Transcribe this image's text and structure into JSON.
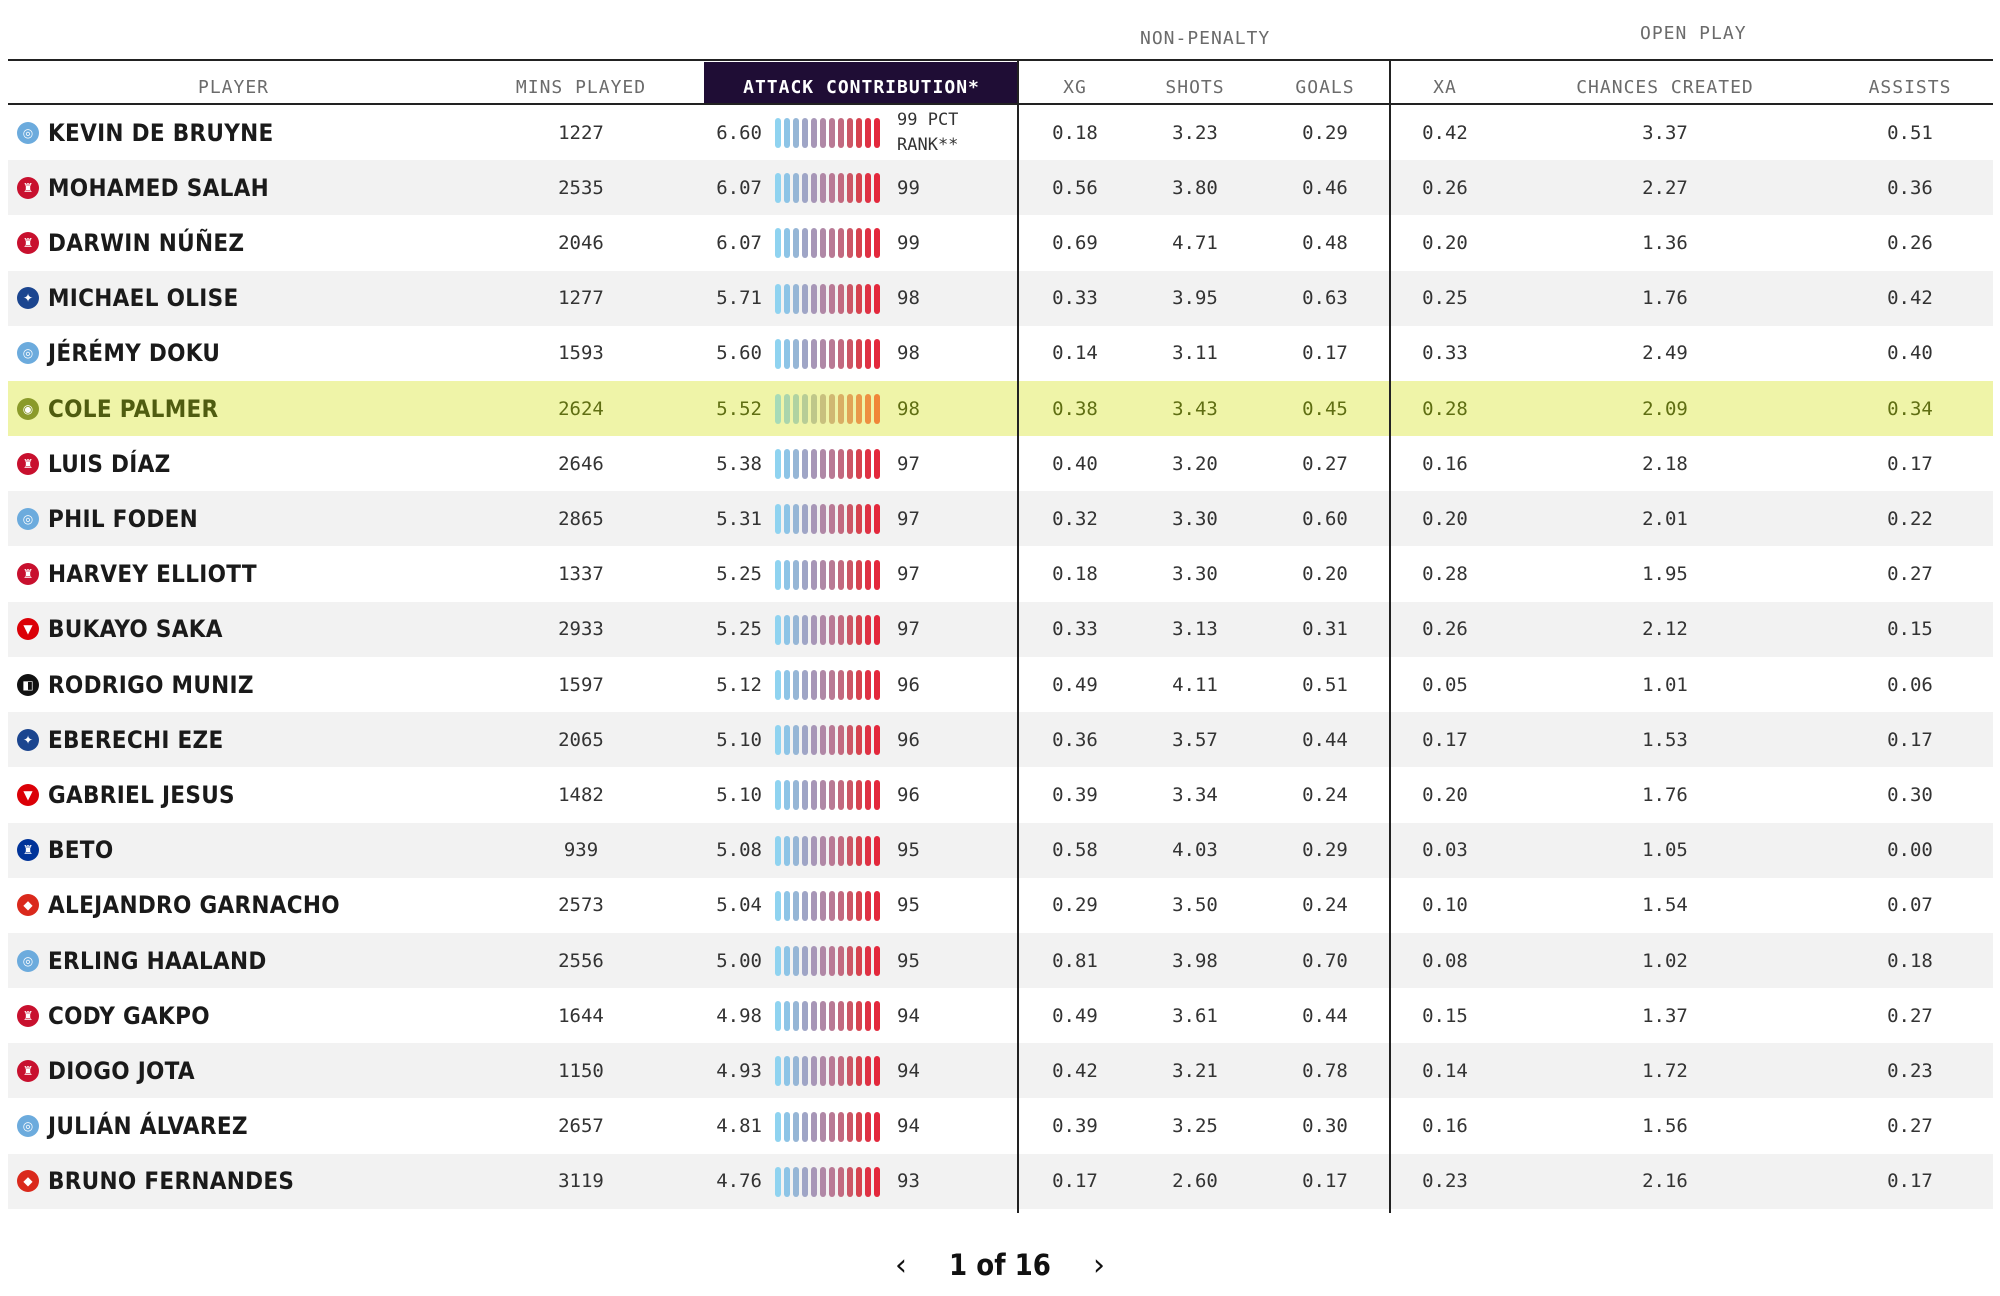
{
  "group_headers": {
    "non_penalty": "NON-PENALTY",
    "open_play": "OPEN PLAY"
  },
  "columns": {
    "player": "PLAYER",
    "mins_played": "MINS PLAYED",
    "attack_contribution": "ATTACK CONTRIBUTION*",
    "xg": "XG",
    "shots": "SHOTS",
    "goals": "GOALS",
    "xa": "XA",
    "chances_created": "CHANCES CREATED",
    "assists": "ASSISTS"
  },
  "rank_note": "99 PCT RANK**",
  "highlight_color": "#eff4a8",
  "header_active_color": "#1f0d35",
  "rows": [
    {
      "name": "KEVIN DE BRUYNE",
      "team_icon": "man-city-crest",
      "mins": "1227",
      "ac": "6.60",
      "rank": "99",
      "xg": "0.18",
      "shots": "3.23",
      "goals": "0.29",
      "xa": "0.42",
      "chances": "3.37",
      "assists": "0.51"
    },
    {
      "name": "MOHAMED SALAH",
      "team_icon": "liverpool-crest",
      "mins": "2535",
      "ac": "6.07",
      "rank": "99",
      "xg": "0.56",
      "shots": "3.80",
      "goals": "0.46",
      "xa": "0.26",
      "chances": "2.27",
      "assists": "0.36"
    },
    {
      "name": "DARWIN NÚÑEZ",
      "team_icon": "liverpool-crest",
      "mins": "2046",
      "ac": "6.07",
      "rank": "99",
      "xg": "0.69",
      "shots": "4.71",
      "goals": "0.48",
      "xa": "0.20",
      "chances": "1.36",
      "assists": "0.26"
    },
    {
      "name": "MICHAEL OLISE",
      "team_icon": "crystal-palace-crest",
      "mins": "1277",
      "ac": "5.71",
      "rank": "98",
      "xg": "0.33",
      "shots": "3.95",
      "goals": "0.63",
      "xa": "0.25",
      "chances": "1.76",
      "assists": "0.42"
    },
    {
      "name": "JÉRÉMY DOKU",
      "team_icon": "man-city-crest",
      "mins": "1593",
      "ac": "5.60",
      "rank": "98",
      "xg": "0.14",
      "shots": "3.11",
      "goals": "0.17",
      "xa": "0.33",
      "chances": "2.49",
      "assists": "0.40"
    },
    {
      "name": "COLE PALMER",
      "team_icon": "chelsea-crest",
      "mins": "2624",
      "ac": "5.52",
      "rank": "98",
      "xg": "0.38",
      "shots": "3.43",
      "goals": "0.45",
      "xa": "0.28",
      "chances": "2.09",
      "assists": "0.34",
      "highlight": true
    },
    {
      "name": "LUIS DÍAZ",
      "team_icon": "liverpool-crest",
      "mins": "2646",
      "ac": "5.38",
      "rank": "97",
      "xg": "0.40",
      "shots": "3.20",
      "goals": "0.27",
      "xa": "0.16",
      "chances": "2.18",
      "assists": "0.17"
    },
    {
      "name": "PHIL FODEN",
      "team_icon": "man-city-crest",
      "mins": "2865",
      "ac": "5.31",
      "rank": "97",
      "xg": "0.32",
      "shots": "3.30",
      "goals": "0.60",
      "xa": "0.20",
      "chances": "2.01",
      "assists": "0.22"
    },
    {
      "name": "HARVEY ELLIOTT",
      "team_icon": "liverpool-crest",
      "mins": "1337",
      "ac": "5.25",
      "rank": "97",
      "xg": "0.18",
      "shots": "3.30",
      "goals": "0.20",
      "xa": "0.28",
      "chances": "1.95",
      "assists": "0.27"
    },
    {
      "name": "BUKAYO SAKA",
      "team_icon": "arsenal-crest",
      "mins": "2933",
      "ac": "5.25",
      "rank": "97",
      "xg": "0.33",
      "shots": "3.13",
      "goals": "0.31",
      "xa": "0.26",
      "chances": "2.12",
      "assists": "0.15"
    },
    {
      "name": "RODRIGO MUNIZ",
      "team_icon": "fulham-crest",
      "mins": "1597",
      "ac": "5.12",
      "rank": "96",
      "xg": "0.49",
      "shots": "4.11",
      "goals": "0.51",
      "xa": "0.05",
      "chances": "1.01",
      "assists": "0.06"
    },
    {
      "name": "EBERECHI EZE",
      "team_icon": "crystal-palace-crest",
      "mins": "2065",
      "ac": "5.10",
      "rank": "96",
      "xg": "0.36",
      "shots": "3.57",
      "goals": "0.44",
      "xa": "0.17",
      "chances": "1.53",
      "assists": "0.17"
    },
    {
      "name": "GABRIEL JESUS",
      "team_icon": "arsenal-crest",
      "mins": "1482",
      "ac": "5.10",
      "rank": "96",
      "xg": "0.39",
      "shots": "3.34",
      "goals": "0.24",
      "xa": "0.20",
      "chances": "1.76",
      "assists": "0.30"
    },
    {
      "name": "BETO",
      "team_icon": "everton-crest",
      "mins": "939",
      "ac": "5.08",
      "rank": "95",
      "xg": "0.58",
      "shots": "4.03",
      "goals": "0.29",
      "xa": "0.03",
      "chances": "1.05",
      "assists": "0.00"
    },
    {
      "name": "ALEJANDRO GARNACHO",
      "team_icon": "man-united-crest",
      "mins": "2573",
      "ac": "5.04",
      "rank": "95",
      "xg": "0.29",
      "shots": "3.50",
      "goals": "0.24",
      "xa": "0.10",
      "chances": "1.54",
      "assists": "0.07"
    },
    {
      "name": "ERLING HAALAND",
      "team_icon": "man-city-crest",
      "mins": "2556",
      "ac": "5.00",
      "rank": "95",
      "xg": "0.81",
      "shots": "3.98",
      "goals": "0.70",
      "xa": "0.08",
      "chances": "1.02",
      "assists": "0.18"
    },
    {
      "name": "CODY GAKPO",
      "team_icon": "liverpool-crest",
      "mins": "1644",
      "ac": "4.98",
      "rank": "94",
      "xg": "0.49",
      "shots": "3.61",
      "goals": "0.44",
      "xa": "0.15",
      "chances": "1.37",
      "assists": "0.27"
    },
    {
      "name": "DIOGO JOTA",
      "team_icon": "liverpool-crest",
      "mins": "1150",
      "ac": "4.93",
      "rank": "94",
      "xg": "0.42",
      "shots": "3.21",
      "goals": "0.78",
      "xa": "0.14",
      "chances": "1.72",
      "assists": "0.23"
    },
    {
      "name": "JULIÁN ÁLVAREZ",
      "team_icon": "man-city-crest",
      "mins": "2657",
      "ac": "4.81",
      "rank": "94",
      "xg": "0.39",
      "shots": "3.25",
      "goals": "0.30",
      "xa": "0.16",
      "chances": "1.56",
      "assists": "0.27"
    },
    {
      "name": "BRUNO FERNANDES",
      "team_icon": "man-united-crest",
      "mins": "3119",
      "ac": "4.76",
      "rank": "93",
      "xg": "0.17",
      "shots": "2.60",
      "goals": "0.17",
      "xa": "0.23",
      "chances": "2.16",
      "assists": "0.17"
    }
  ],
  "team_colors": {
    "man-city-crest": "#6cabdd",
    "liverpool-crest": "#c8102e",
    "crystal-palace-crest": "#1b458f",
    "chelsea-crest": "#8a9a2a",
    "arsenal-crest": "#db0007",
    "fulham-crest": "#111111",
    "everton-crest": "#003399",
    "man-united-crest": "#da291c"
  },
  "bar_palette": [
    "#8fd3f0",
    "#8dc4e6",
    "#96b6d6",
    "#9fa5c6",
    "#a796b7",
    "#b088a6",
    "#b97a95",
    "#c26a80",
    "#cc5766",
    "#d6434f",
    "#df3144",
    "#e3283c"
  ],
  "bar_palette_highlight": [
    "#a6dbb8",
    "#aad5ac",
    "#b0d3a1",
    "#b7cd96",
    "#bfc78a",
    "#c8c07e",
    "#d0b872",
    "#d9ae64",
    "#e1a457",
    "#e9994a",
    "#ee8f40",
    "#f08638"
  ],
  "pagination": {
    "label": "1 of 16",
    "prev": "‹",
    "next": "›"
  }
}
